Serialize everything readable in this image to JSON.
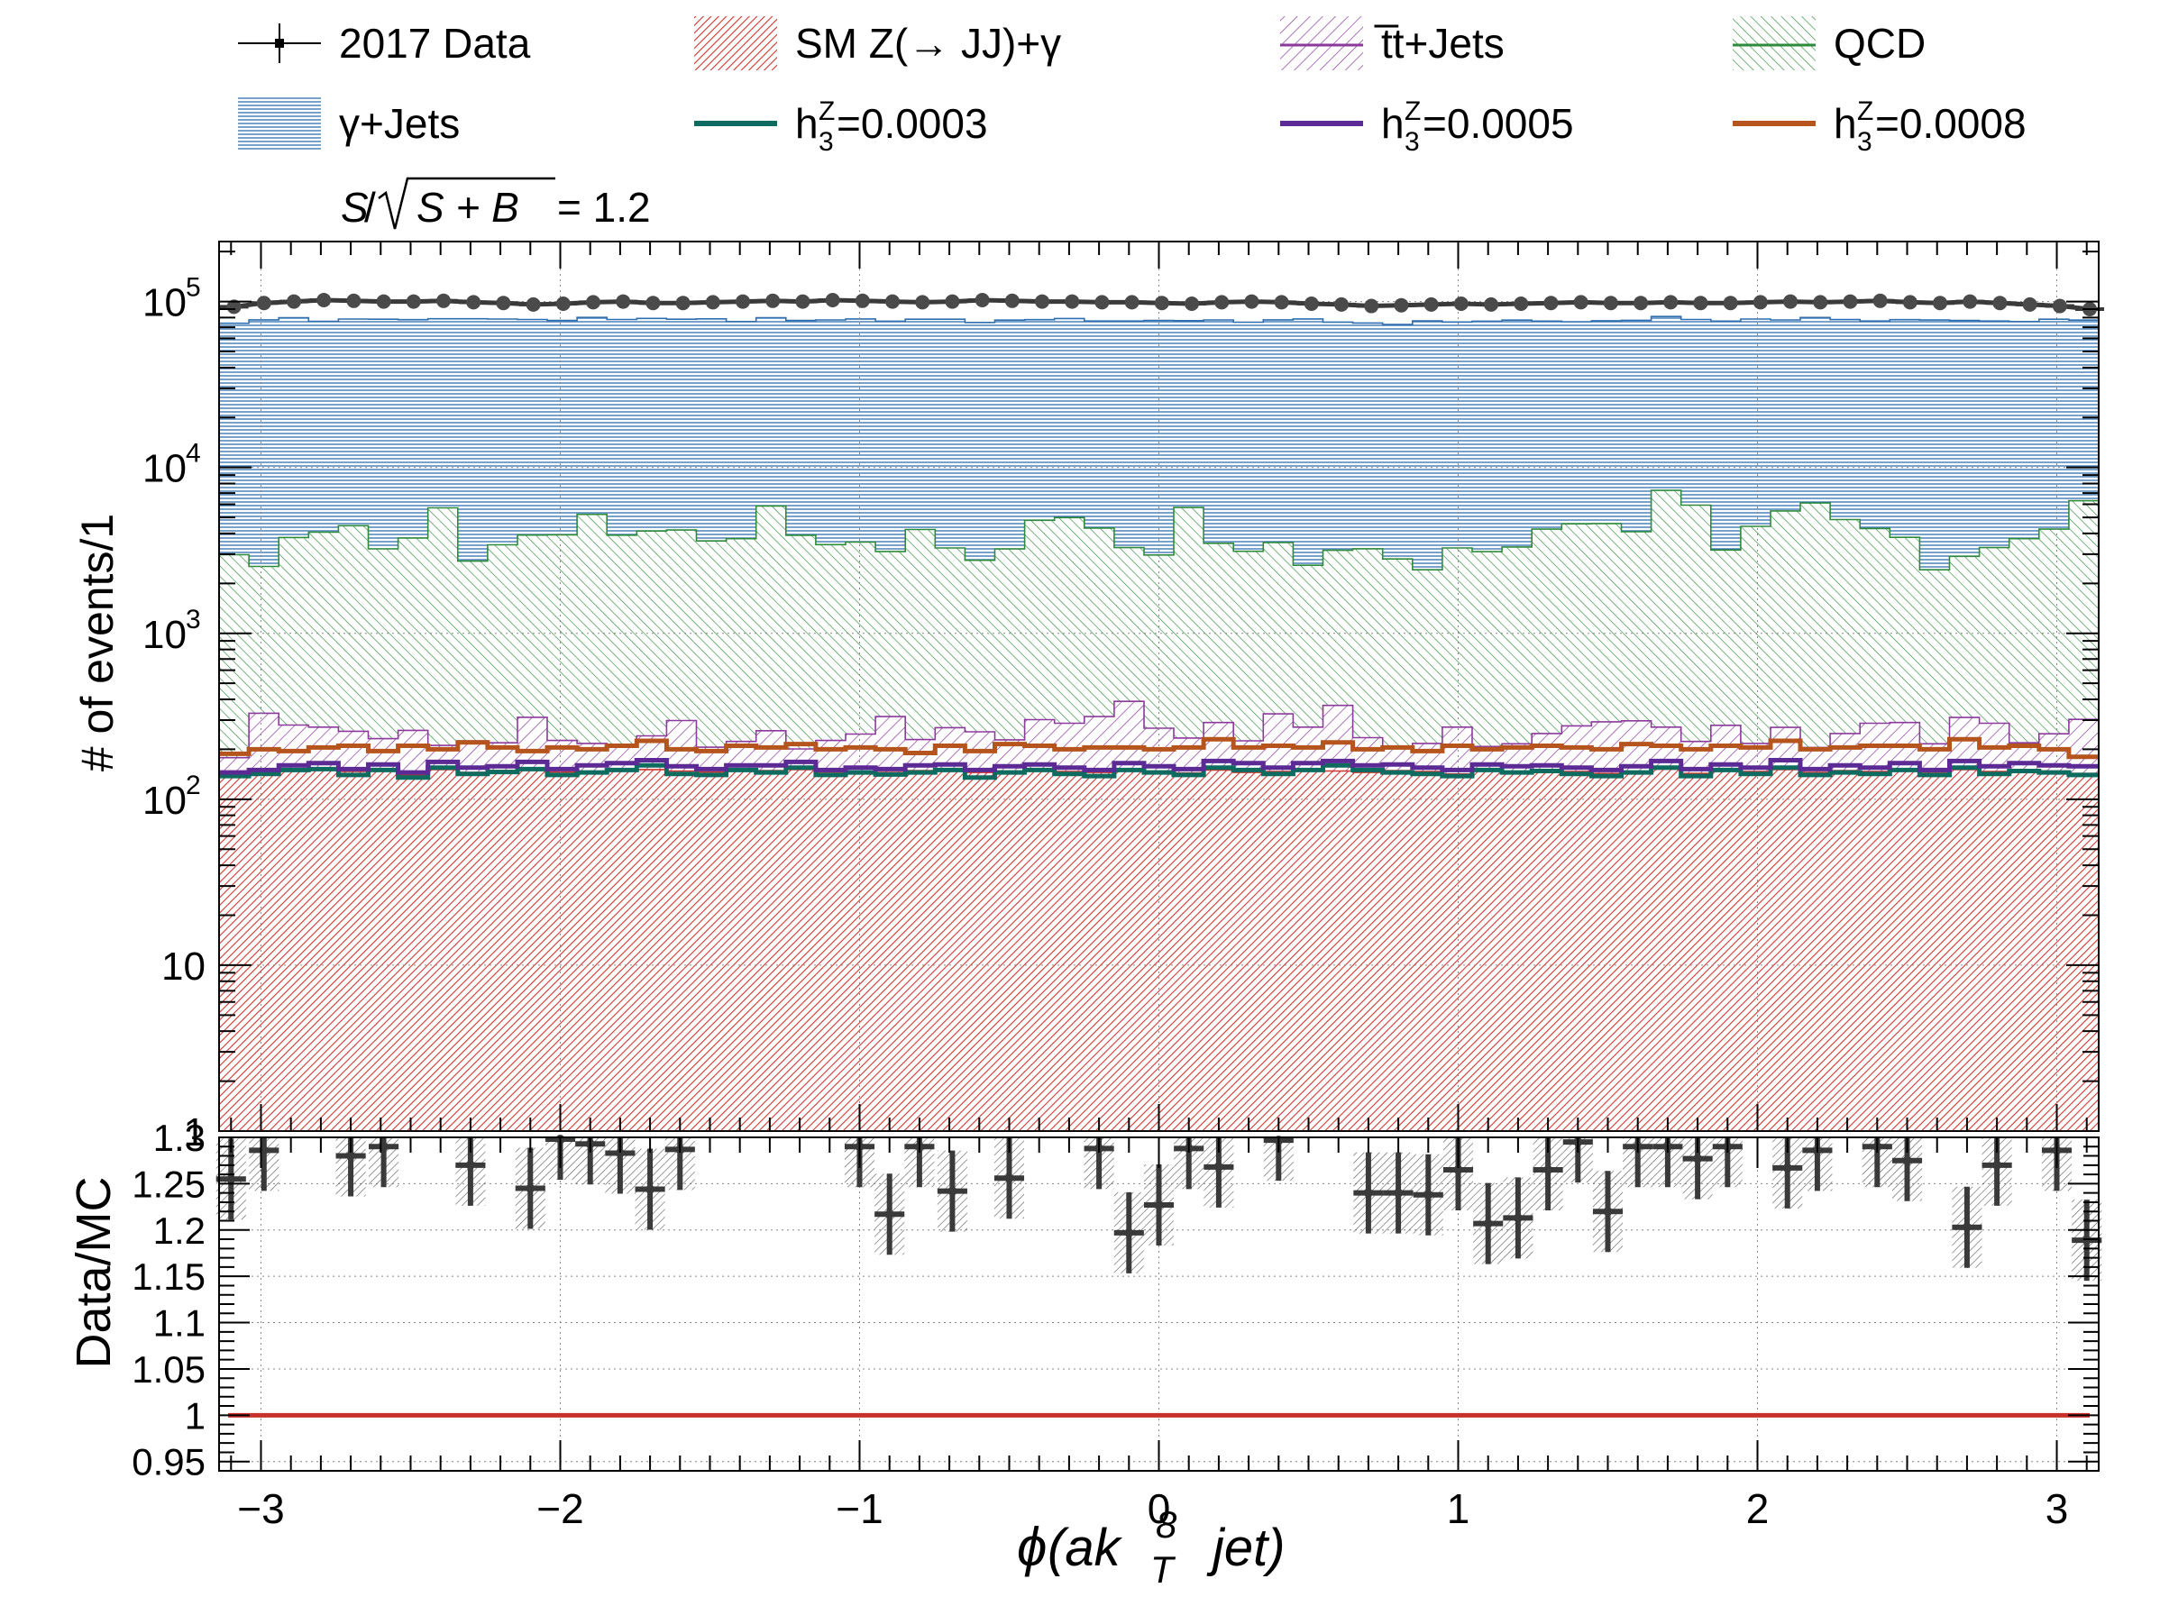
{
  "legend": {
    "items": [
      {
        "key": "data",
        "label": "2017 Data",
        "style": "marker",
        "color": "#000000"
      },
      {
        "key": "sm",
        "label": "SM Z(→ JJ)+γ",
        "style": "hatch",
        "color": "#d1372f"
      },
      {
        "key": "tt",
        "label": "t̅t+Jets",
        "style": "hatch",
        "color": "#8b3a9c"
      },
      {
        "key": "qcd",
        "label": "QCD",
        "style": "hatch",
        "color": "#2e8b3c"
      },
      {
        "key": "gj",
        "label": "γ+Jets",
        "style": "hatch",
        "color": "#2f6fb0"
      },
      {
        "key": "h1",
        "label": "h3Z=0.0003",
        "style": "line",
        "color": "#0e6b60",
        "pre": "h",
        "sup": "Z",
        "sub": "3",
        "post": "=0.0003"
      },
      {
        "key": "h2",
        "label": "h3Z=0.0005",
        "style": "line",
        "color": "#5b2a94",
        "pre": "h",
        "sup": "Z",
        "sub": "3",
        "post": "=0.0005"
      },
      {
        "key": "h3",
        "label": "h3Z=0.0008",
        "style": "line",
        "color": "#b5541c",
        "pre": "h",
        "sup": "Z",
        "sub": "3",
        "post": "=0.0008"
      }
    ]
  },
  "significance": {
    "s": "S",
    "slash": "/",
    "splus": "S + B",
    "eq": "= 1.2"
  },
  "chart_data": [
    {
      "type": "area",
      "panel": "main",
      "ylabel": "# of events/1",
      "yscale": "log",
      "ylim": [
        1,
        230000
      ],
      "xlim": [
        -3.14,
        3.14
      ],
      "yticks": [
        {
          "v": 1,
          "label": "1"
        },
        {
          "v": 10,
          "label": "10"
        },
        {
          "v": 100,
          "label": "10",
          "exp": "2"
        },
        {
          "v": 1000,
          "label": "10",
          "exp": "3"
        },
        {
          "v": 10000,
          "label": "10",
          "exp": "4"
        },
        {
          "v": 100000,
          "label": "10",
          "exp": "5"
        }
      ],
      "nbins": 63,
      "stack": [
        {
          "name": "SM Z(→ JJ)+γ",
          "color": "#d1372f",
          "values": [
            148,
            150,
            150,
            152,
            147,
            152,
            140,
            151,
            145,
            149,
            152,
            146,
            147,
            148,
            151,
            148,
            146,
            153,
            149,
            151,
            146,
            147,
            145,
            149,
            150,
            145,
            148,
            152,
            147,
            145,
            149,
            148,
            144,
            150,
            145,
            147,
            152,
            148,
            145,
            149,
            147,
            142,
            148,
            146,
            149,
            147,
            143,
            147,
            152,
            143,
            149,
            147,
            151,
            145,
            149,
            147,
            150,
            146,
            151,
            147,
            149,
            148,
            143
          ]
        },
        {
          "name": "t̅t+Jets",
          "values": [
            30,
            180,
            130,
            120,
            110,
            80,
            120,
            60,
            80,
            70,
            160,
            80,
            70,
            60,
            90,
            150,
            60,
            70,
            110,
            50,
            80,
            100,
            170,
            80,
            120,
            110,
            80,
            150,
            140,
            170,
            240,
            120,
            90,
            140,
            80,
            180,
            120,
            220,
            90,
            60,
            70,
            130,
            60,
            70,
            100,
            130,
            150,
            150,
            120,
            80,
            130,
            70,
            120,
            60,
            100,
            140,
            140,
            70,
            160,
            140,
            70,
            100,
            160
          ]
        },
        {
          "name": "QCD",
          "color": "#2e8b3c",
          "values": [
            2800,
            2200,
            3500,
            3800,
            4200,
            3000,
            3500,
            5500,
            2500,
            3200,
            3600,
            3700,
            5000,
            3700,
            3900,
            3900,
            3400,
            3500,
            5600,
            3700,
            3200,
            3300,
            2800,
            4000,
            3000,
            2500,
            3000,
            4500,
            4700,
            4000,
            2900,
            2700,
            5500,
            3200,
            2900,
            3200,
            2300,
            2800,
            3000,
            2600,
            2200,
            3000,
            2900,
            3100,
            4000,
            4300,
            4300,
            3800,
            7000,
            5700,
            2900,
            4200,
            5200,
            5900,
            4600,
            4000,
            3500,
            2200,
            2600,
            3000,
            3500,
            4000,
            6000
          ]
        },
        {
          "name": "γ+Jets",
          "color": "#2f6fb0",
          "values": [
            71000,
            75000,
            76000,
            72000,
            74000,
            75000,
            74000,
            73000,
            76000,
            75000,
            74000,
            73000,
            75000,
            74000,
            75000,
            74000,
            75000,
            72000,
            74000,
            73000,
            74000,
            75000,
            73000,
            74000,
            75000,
            72000,
            74000,
            73000,
            74000,
            72000,
            73000,
            74000,
            71000,
            74000,
            72000,
            74000,
            76000,
            72000,
            71000,
            70000,
            74000,
            72000,
            73000,
            74000,
            72000,
            71000,
            72000,
            73000,
            74000,
            72000,
            73000,
            74000,
            72000,
            74000,
            73000,
            72000,
            74000,
            75000,
            74000,
            73000,
            72000,
            74000,
            71000
          ]
        }
      ],
      "signal": [
        {
          "name": "h3Z=0.0003",
          "color": "#0e6b60",
          "values": [
            138,
            142,
            150,
            152,
            140,
            150,
            135,
            155,
            142,
            146,
            152,
            140,
            145,
            150,
            160,
            142,
            140,
            150,
            145,
            155,
            140,
            145,
            141,
            145,
            150,
            135,
            145,
            150,
            142,
            138,
            150,
            145,
            140,
            155,
            150,
            142,
            150,
            160,
            150,
            145,
            142,
            138,
            150,
            145,
            148,
            142,
            138,
            145,
            155,
            138,
            150,
            142,
            155,
            140,
            145,
            142,
            150,
            140,
            155,
            142,
            148,
            145,
            140
          ]
        },
        {
          "name": "h3Z=0.0005",
          "color": "#5b2a94",
          "values": [
            145,
            150,
            160,
            165,
            152,
            162,
            145,
            168,
            155,
            158,
            168,
            152,
            160,
            165,
            172,
            158,
            152,
            160,
            160,
            168,
            150,
            155,
            152,
            160,
            162,
            150,
            158,
            162,
            155,
            150,
            165,
            158,
            152,
            170,
            165,
            155,
            165,
            170,
            160,
            162,
            155,
            150,
            162,
            158,
            160,
            155,
            150,
            158,
            170,
            152,
            162,
            155,
            172,
            152,
            160,
            155,
            165,
            150,
            170,
            158,
            165,
            160,
            158
          ]
        },
        {
          "name": "h3Z=0.0008",
          "color": "#b5541c",
          "values": [
            188,
            200,
            195,
            205,
            210,
            195,
            210,
            200,
            220,
            205,
            195,
            205,
            200,
            210,
            225,
            200,
            195,
            210,
            205,
            215,
            200,
            205,
            200,
            190,
            210,
            195,
            215,
            210,
            200,
            205,
            205,
            200,
            205,
            230,
            205,
            210,
            205,
            220,
            200,
            205,
            195,
            210,
            200,
            205,
            210,
            205,
            200,
            215,
            210,
            200,
            210,
            205,
            225,
            200,
            205,
            210,
            210,
            200,
            230,
            205,
            210,
            200,
            180
          ]
        }
      ],
      "data": {
        "name": "2017 Data",
        "x": [
          -3.09,
          -2.99,
          -2.89,
          -2.79,
          -2.69,
          -2.59,
          -2.49,
          -2.39,
          -2.29,
          -2.19,
          -2.09,
          -1.99,
          -1.89,
          -1.79,
          -1.69,
          -1.59,
          -1.49,
          -1.39,
          -1.29,
          -1.19,
          -1.09,
          -0.99,
          -0.89,
          -0.79,
          -0.69,
          -0.59,
          -0.49,
          -0.39,
          -0.29,
          -0.19,
          -0.09,
          0.01,
          0.11,
          0.21,
          0.31,
          0.41,
          0.51,
          0.61,
          0.71,
          0.81,
          0.91,
          1.01,
          1.11,
          1.21,
          1.31,
          1.41,
          1.51,
          1.61,
          1.71,
          1.81,
          1.91,
          2.01,
          2.11,
          2.21,
          2.31,
          2.41,
          2.51,
          2.61,
          2.71,
          2.81,
          2.91,
          3.01,
          3.11
        ],
        "values": [
          93000,
          98000,
          100000,
          102000,
          101000,
          100000,
          100000,
          101000,
          99000,
          98000,
          96000,
          97000,
          99000,
          100000,
          98000,
          98000,
          99000,
          100000,
          101000,
          100000,
          102000,
          101000,
          100000,
          99000,
          100000,
          102000,
          101000,
          100000,
          100000,
          99000,
          99000,
          98000,
          97000,
          99000,
          100000,
          99000,
          97000,
          96000,
          94000,
          95000,
          96000,
          97000,
          96000,
          97000,
          98000,
          99000,
          98000,
          98000,
          99000,
          98000,
          98000,
          99000,
          100000,
          99000,
          100000,
          101000,
          99000,
          98000,
          100000,
          98000,
          96000,
          94000,
          90000
        ]
      }
    },
    {
      "type": "scatter",
      "panel": "ratio",
      "xlabel": "ϕ(ak8T jet)",
      "ylabel": "Data/MC",
      "ylim": [
        0.94,
        1.3
      ],
      "xlim": [
        -3.14,
        3.14
      ],
      "yticks": [
        {
          "v": 0.95,
          "label": "0.95"
        },
        {
          "v": 1.0,
          "label": "1"
        },
        {
          "v": 1.05,
          "label": "1.05"
        },
        {
          "v": 1.1,
          "label": "1.1"
        },
        {
          "v": 1.15,
          "label": "1.15"
        },
        {
          "v": 1.2,
          "label": "1.2"
        },
        {
          "v": 1.25,
          "label": "1.25"
        },
        {
          "v": 1.3,
          "label": "1.3"
        }
      ],
      "xticks": [
        {
          "v": -3,
          "label": "−3"
        },
        {
          "v": -2,
          "label": "−2"
        },
        {
          "v": -1,
          "label": "−1"
        },
        {
          "v": 0,
          "label": "0"
        },
        {
          "v": 1,
          "label": "1"
        },
        {
          "v": 2,
          "label": "2"
        },
        {
          "v": 3,
          "label": "3"
        }
      ],
      "reference": 1.0,
      "points": [
        {
          "x": -3.1,
          "y": 1.255
        },
        {
          "x": -2.99,
          "y": 1.286
        },
        {
          "x": -2.7,
          "y": 1.28
        },
        {
          "x": -2.59,
          "y": 1.29
        },
        {
          "x": -2.3,
          "y": 1.27
        },
        {
          "x": -2.1,
          "y": 1.245
        },
        {
          "x": -2.0,
          "y": 1.298
        },
        {
          "x": -1.9,
          "y": 1.293
        },
        {
          "x": -1.8,
          "y": 1.283
        },
        {
          "x": -1.7,
          "y": 1.244
        },
        {
          "x": -1.6,
          "y": 1.287
        },
        {
          "x": -1.0,
          "y": 1.29
        },
        {
          "x": -0.9,
          "y": 1.217
        },
        {
          "x": -0.8,
          "y": 1.29
        },
        {
          "x": -0.69,
          "y": 1.242
        },
        {
          "x": -0.5,
          "y": 1.256
        },
        {
          "x": -0.2,
          "y": 1.288
        },
        {
          "x": -0.1,
          "y": 1.197
        },
        {
          "x": 0.0,
          "y": 1.227
        },
        {
          "x": 0.1,
          "y": 1.288
        },
        {
          "x": 0.2,
          "y": 1.268
        },
        {
          "x": 0.4,
          "y": 1.297
        },
        {
          "x": 0.7,
          "y": 1.24
        },
        {
          "x": 0.8,
          "y": 1.24
        },
        {
          "x": 0.9,
          "y": 1.238
        },
        {
          "x": 1.0,
          "y": 1.265
        },
        {
          "x": 1.1,
          "y": 1.207
        },
        {
          "x": 1.2,
          "y": 1.213
        },
        {
          "x": 1.3,
          "y": 1.265
        },
        {
          "x": 1.4,
          "y": 1.295
        },
        {
          "x": 1.5,
          "y": 1.22
        },
        {
          "x": 1.6,
          "y": 1.29
        },
        {
          "x": 1.7,
          "y": 1.29
        },
        {
          "x": 1.8,
          "y": 1.277
        },
        {
          "x": 1.9,
          "y": 1.29
        },
        {
          "x": 2.1,
          "y": 1.267
        },
        {
          "x": 2.2,
          "y": 1.286
        },
        {
          "x": 2.4,
          "y": 1.29
        },
        {
          "x": 2.5,
          "y": 1.275
        },
        {
          "x": 2.7,
          "y": 1.203
        },
        {
          "x": 2.8,
          "y": 1.27
        },
        {
          "x": 3.0,
          "y": 1.286
        },
        {
          "x": 3.1,
          "y": 1.189
        }
      ]
    }
  ]
}
